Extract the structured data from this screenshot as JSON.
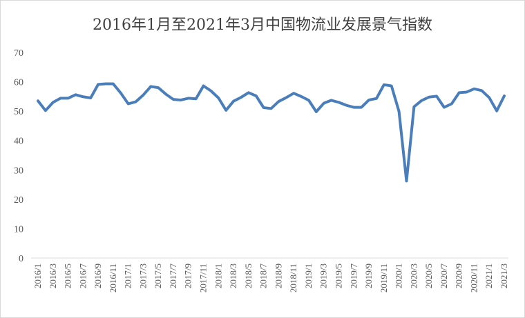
{
  "chart_data": {
    "type": "line",
    "title": "2016年1月至2021年3月中国物流业发展景气指数",
    "xlabel": "",
    "ylabel": "",
    "ylim": [
      0,
      70
    ],
    "yticks": [
      0,
      10,
      20,
      30,
      40,
      50,
      60,
      70
    ],
    "grid": false,
    "legend": "none",
    "line_color": "#4a7ebb",
    "x": [
      "2016/1",
      "2016/2",
      "2016/3",
      "2016/4",
      "2016/5",
      "2016/6",
      "2016/7",
      "2016/8",
      "2016/9",
      "2016/10",
      "2016/11",
      "2016/12",
      "2017/1",
      "2017/2",
      "2017/3",
      "2017/4",
      "2017/5",
      "2017/6",
      "2017/7",
      "2017/8",
      "2017/9",
      "2017/10",
      "2017/11",
      "2017/12",
      "2018/1",
      "2018/2",
      "2018/3",
      "2018/4",
      "2018/5",
      "2018/6",
      "2018/7",
      "2018/8",
      "2018/9",
      "2018/10",
      "2018/11",
      "2018/12",
      "2019/1",
      "2019/2",
      "2019/3",
      "2019/4",
      "2019/5",
      "2019/6",
      "2019/7",
      "2019/8",
      "2019/9",
      "2019/10",
      "2019/11",
      "2019/12",
      "2020/1",
      "2020/2",
      "2020/3",
      "2020/4",
      "2020/5",
      "2020/6",
      "2020/7",
      "2020/8",
      "2020/9",
      "2020/10",
      "2020/11",
      "2020/12",
      "2021/1",
      "2021/2",
      "2021/3"
    ],
    "tick_labels": [
      "2016/1",
      "2016/3",
      "2016/5",
      "2016/7",
      "2016/9",
      "2016/11",
      "2017/1",
      "2017/3",
      "2017/5",
      "2017/7",
      "2017/9",
      "2017/11",
      "2018/1",
      "2018/3",
      "2018/5",
      "2018/7",
      "2018/9",
      "2018/11",
      "2019/1",
      "2019/3",
      "2019/5",
      "2019/7",
      "2019/9",
      "2019/11",
      "2020/1",
      "2020/3",
      "2020/5",
      "2020/7",
      "2020/9",
      "2020/11",
      "2021/1",
      "2021/3"
    ],
    "values": [
      53.5,
      50.2,
      53.0,
      54.4,
      54.4,
      55.6,
      54.9,
      54.5,
      59.1,
      59.3,
      59.3,
      56.2,
      52.5,
      53.2,
      55.5,
      58.4,
      58.0,
      55.8,
      54.0,
      53.8,
      54.4,
      54.2,
      58.6,
      56.9,
      54.5,
      50.3,
      53.4,
      54.7,
      56.3,
      55.2,
      51.2,
      50.9,
      53.3,
      54.6,
      56.1,
      55.0,
      53.7,
      49.8,
      52.7,
      53.7,
      53.0,
      52.0,
      51.3,
      51.3,
      53.8,
      54.3,
      59.0,
      58.6,
      49.9,
      26.2,
      51.5,
      53.6,
      54.8,
      55.1,
      51.3,
      52.5,
      56.3,
      56.5,
      57.6,
      57.0,
      54.6,
      50.1,
      55.2
    ]
  }
}
